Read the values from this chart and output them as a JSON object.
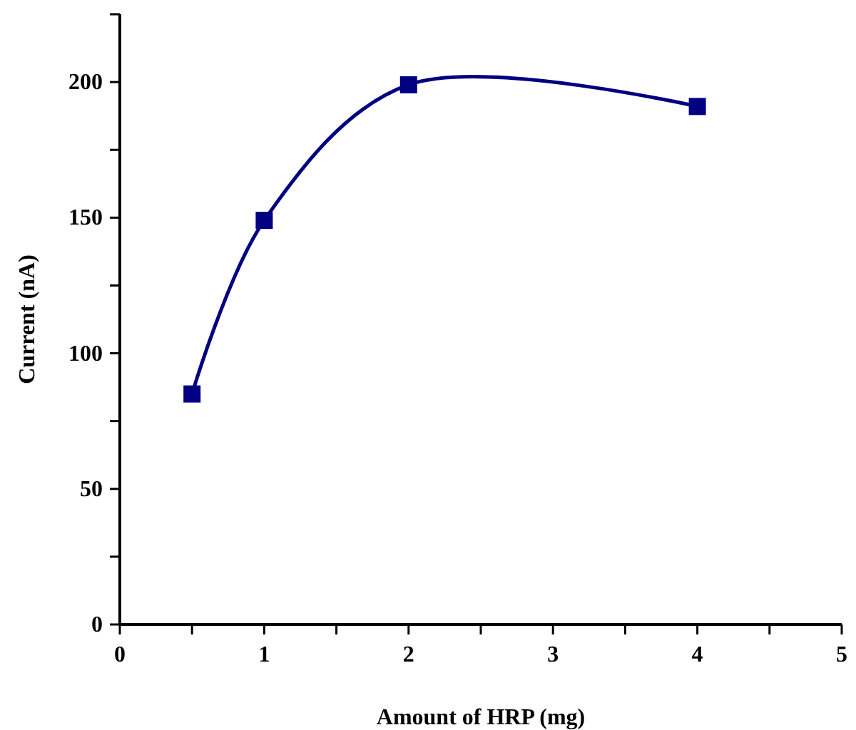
{
  "chart_data": {
    "type": "line",
    "xlabel": "Amount of HRP (mg)",
    "ylabel": "Current (nA)",
    "x": [
      0.5,
      1,
      2,
      4
    ],
    "series": [
      {
        "color": "#000080",
        "values": [
          85,
          149,
          199,
          191
        ]
      }
    ],
    "marker": "square",
    "line_style": "solid",
    "grid": false,
    "xlim": [
      0,
      5
    ],
    "xticks": [
      0,
      {
        "value": 0.5,
        "label": null
      },
      1,
      {
        "value": 1.5,
        "label": null
      },
      2,
      {
        "value": 2.5,
        "label": null
      },
      3,
      {
        "value": 3.5,
        "label": null
      },
      4,
      {
        "value": 4.5,
        "label": null
      },
      5
    ],
    "ylim": [
      0,
      225
    ],
    "yticks": [
      0,
      {
        "value": 25,
        "label": null
      },
      50,
      {
        "value": 75,
        "label": null
      },
      100,
      {
        "value": 125,
        "label": null
      },
      150,
      {
        "value": 175,
        "label": null
      },
      200,
      {
        "value": 225,
        "label": null
      }
    ]
  }
}
